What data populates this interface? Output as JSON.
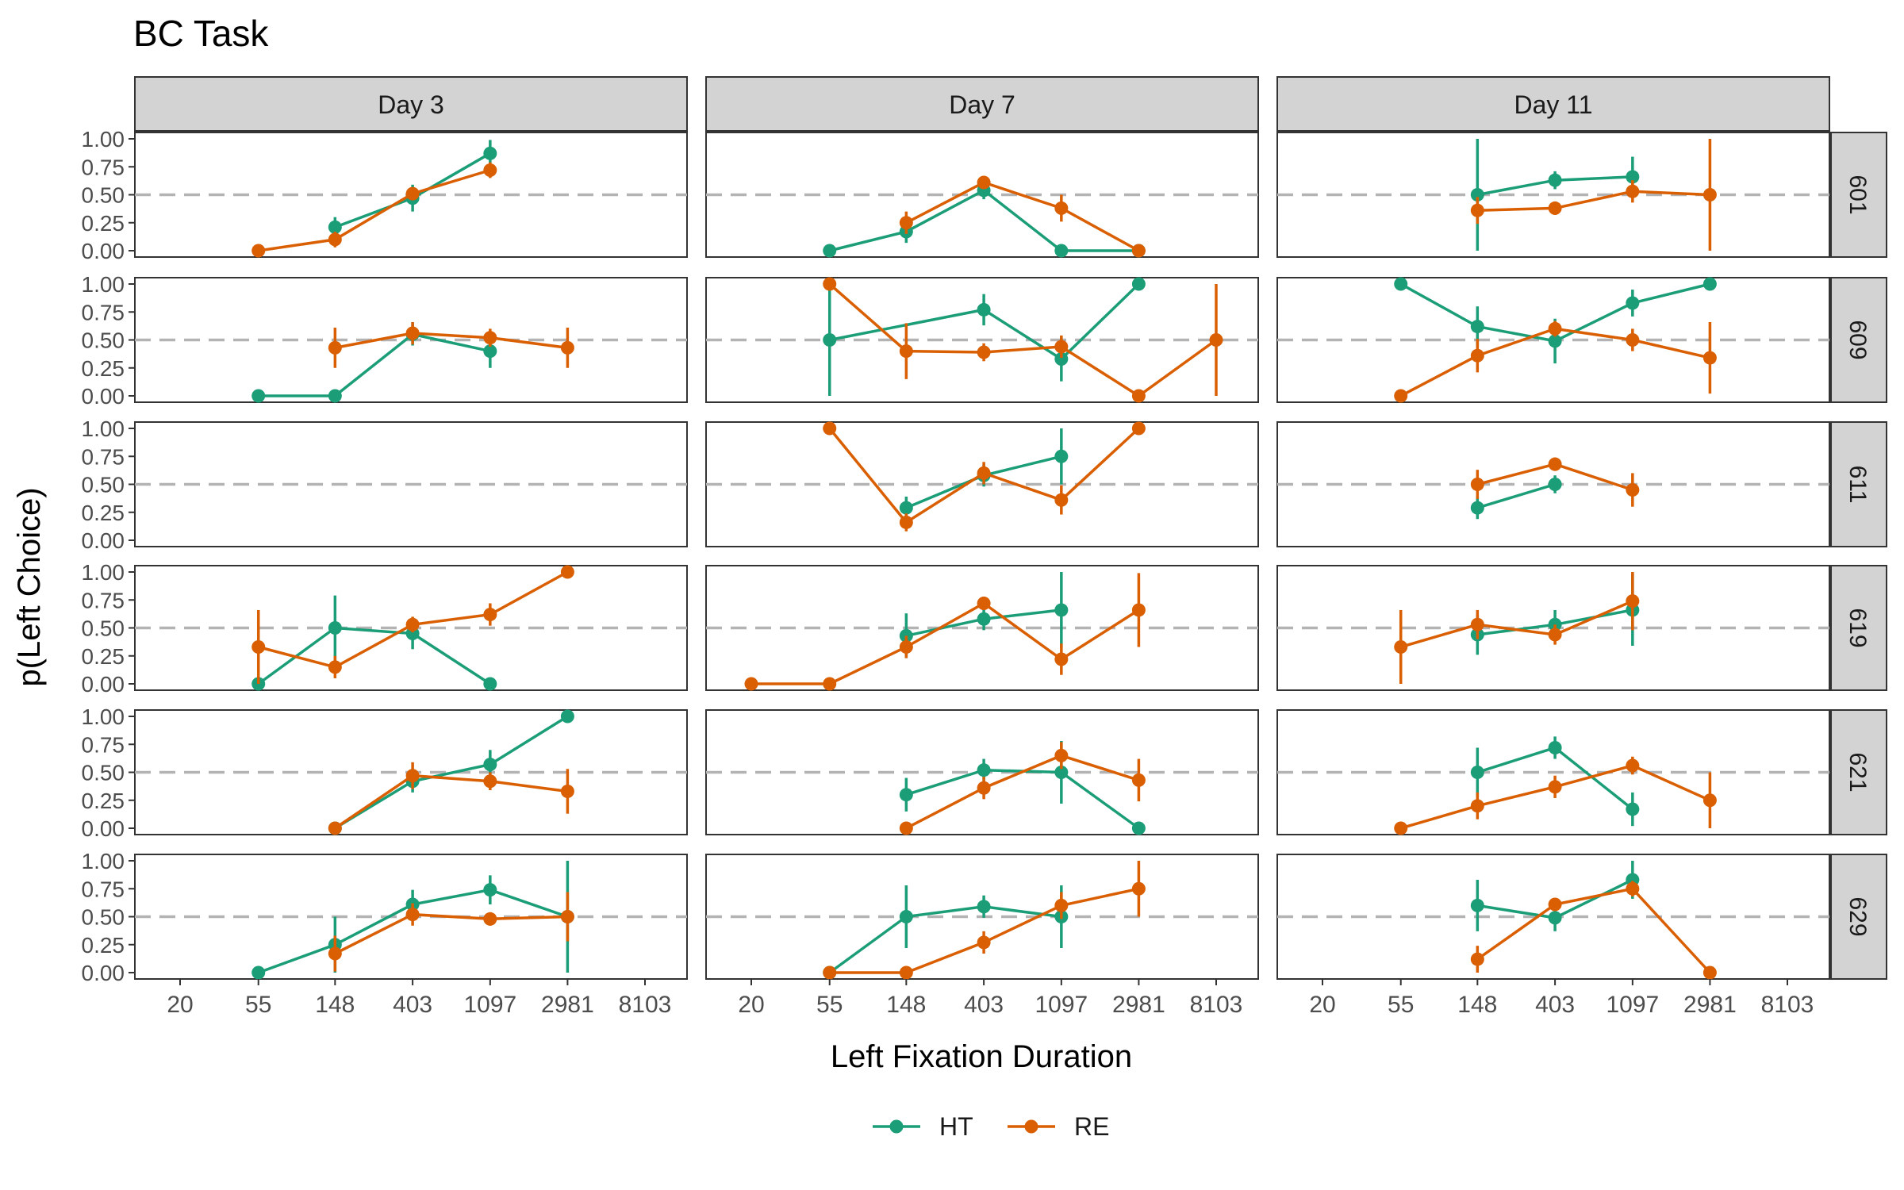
{
  "chart_data": {
    "type": "line",
    "title": "BC Task",
    "xlabel": "Left Fixation Duration",
    "ylabel": "p(Left Choice)",
    "x_ticks": [
      20,
      55,
      148,
      403,
      1097,
      2981,
      8103
    ],
    "x_scale": "log",
    "y_ticks": [
      "0.00",
      "0.25",
      "0.50",
      "0.75",
      "1.00"
    ],
    "ylim": [
      0,
      1
    ],
    "reference_line": 0.5,
    "legend_position": "bottom",
    "col_facets": [
      "Day 3",
      "Day 7",
      "Day 11"
    ],
    "row_facets": [
      "601",
      "609",
      "611",
      "619",
      "621",
      "629"
    ],
    "series": [
      {
        "name": "HT",
        "color": "#1b9e77"
      },
      {
        "name": "RE",
        "color": "#d95f02"
      }
    ],
    "panels": [
      {
        "day": "Day 3",
        "subject": "601",
        "HT": [
          [
            148,
            0.21,
            0.09
          ],
          [
            403,
            0.47,
            0.12
          ],
          [
            1097,
            0.87,
            0.12
          ]
        ],
        "RE": [
          [
            55,
            0.0,
            0
          ],
          [
            148,
            0.1,
            0.07
          ],
          [
            403,
            0.51,
            0.05
          ],
          [
            1097,
            0.72,
            0.07
          ]
        ]
      },
      {
        "day": "Day 7",
        "subject": "601",
        "HT": [
          [
            55,
            0.0,
            0
          ],
          [
            148,
            0.17,
            0.1
          ],
          [
            403,
            0.54,
            0.08
          ],
          [
            1097,
            0.0,
            0
          ],
          [
            2981,
            0.0,
            0
          ]
        ],
        "RE": [
          [
            148,
            0.25,
            0.1
          ],
          [
            403,
            0.61,
            0.05
          ],
          [
            1097,
            0.38,
            0.12
          ],
          [
            2981,
            0.0,
            0
          ]
        ]
      },
      {
        "day": "Day 11",
        "subject": "601",
        "HT": [
          [
            148,
            0.5,
            0.5
          ],
          [
            403,
            0.63,
            0.08
          ],
          [
            1097,
            0.66,
            0.18
          ]
        ],
        "RE": [
          [
            148,
            0.36,
            0.12
          ],
          [
            403,
            0.38,
            0.06
          ],
          [
            1097,
            0.53,
            0.1
          ],
          [
            2981,
            0.5,
            0.5
          ]
        ]
      },
      {
        "day": "Day 3",
        "subject": "609",
        "HT": [
          [
            55,
            0.0,
            0
          ],
          [
            148,
            0.0,
            0
          ],
          [
            403,
            0.55,
            0.1
          ],
          [
            1097,
            0.4,
            0.15
          ]
        ],
        "RE": [
          [
            148,
            0.43,
            0.18
          ],
          [
            403,
            0.56,
            0.1
          ],
          [
            1097,
            0.52,
            0.08
          ],
          [
            2981,
            0.43,
            0.18
          ]
        ]
      },
      {
        "day": "Day 7",
        "subject": "609",
        "HT": [
          [
            55,
            0.5,
            0.5
          ],
          [
            403,
            0.77,
            0.14
          ],
          [
            1097,
            0.33,
            0.2
          ],
          [
            2981,
            1.0,
            0
          ]
        ],
        "RE": [
          [
            55,
            1.0,
            0
          ],
          [
            148,
            0.4,
            0.25
          ],
          [
            403,
            0.39,
            0.08
          ],
          [
            1097,
            0.44,
            0.1
          ],
          [
            2981,
            0.0,
            0
          ],
          [
            8103,
            0.5,
            0.5
          ]
        ]
      },
      {
        "day": "Day 11",
        "subject": "609",
        "HT": [
          [
            55,
            1.0,
            0
          ],
          [
            148,
            0.62,
            0.18
          ],
          [
            403,
            0.49,
            0.2
          ],
          [
            1097,
            0.83,
            0.12
          ],
          [
            2981,
            1.0,
            0
          ]
        ],
        "RE": [
          [
            55,
            0.0,
            0
          ],
          [
            148,
            0.36,
            0.15
          ],
          [
            403,
            0.6,
            0.07
          ],
          [
            1097,
            0.5,
            0.1
          ],
          [
            2981,
            0.34,
            0.32
          ]
        ]
      },
      {
        "day": "Day 7",
        "subject": "611",
        "HT": [
          [
            148,
            0.29,
            0.1
          ],
          [
            403,
            0.58,
            0.1
          ],
          [
            1097,
            0.75,
            0.25
          ]
        ],
        "RE": [
          [
            55,
            1.0,
            0
          ],
          [
            148,
            0.16,
            0.08
          ],
          [
            403,
            0.6,
            0.1
          ],
          [
            1097,
            0.36,
            0.13
          ],
          [
            2981,
            1.0,
            0
          ]
        ]
      },
      {
        "day": "Day 11",
        "subject": "611",
        "HT": [
          [
            148,
            0.29,
            0.1
          ],
          [
            403,
            0.5,
            0.08
          ]
        ],
        "RE": [
          [
            148,
            0.5,
            0.13
          ],
          [
            403,
            0.68,
            0.06
          ],
          [
            1097,
            0.45,
            0.15
          ]
        ]
      },
      {
        "day": "Day 3",
        "subject": "619",
        "HT": [
          [
            55,
            0.0,
            0
          ],
          [
            148,
            0.5,
            0.29
          ],
          [
            403,
            0.45,
            0.14
          ],
          [
            1097,
            0.0,
            0
          ]
        ],
        "RE": [
          [
            55,
            0.33,
            0.33
          ],
          [
            148,
            0.15,
            0.1
          ],
          [
            403,
            0.53,
            0.07
          ],
          [
            1097,
            0.62,
            0.1
          ],
          [
            2981,
            1.0,
            0
          ]
        ]
      },
      {
        "day": "Day 7",
        "subject": "619",
        "HT": [
          [
            148,
            0.43,
            0.2
          ],
          [
            403,
            0.58,
            0.1
          ],
          [
            1097,
            0.66,
            0.34
          ]
        ],
        "RE": [
          [
            20,
            0.0,
            0
          ],
          [
            55,
            0.0,
            0
          ],
          [
            148,
            0.33,
            0.1
          ],
          [
            403,
            0.72,
            0.06
          ],
          [
            1097,
            0.22,
            0.14
          ],
          [
            2981,
            0.66,
            0.33
          ]
        ]
      },
      {
        "day": "Day 11",
        "subject": "619",
        "HT": [
          [
            148,
            0.44,
            0.18
          ],
          [
            403,
            0.53,
            0.13
          ],
          [
            1097,
            0.66,
            0.32
          ]
        ],
        "RE": [
          [
            55,
            0.33,
            0.33
          ],
          [
            148,
            0.53,
            0.13
          ],
          [
            403,
            0.44,
            0.09
          ],
          [
            1097,
            0.74,
            0.26
          ]
        ]
      },
      {
        "day": "Day 3",
        "subject": "621",
        "HT": [
          [
            148,
            0.0,
            0
          ],
          [
            403,
            0.42,
            0.1
          ],
          [
            1097,
            0.57,
            0.13
          ],
          [
            2981,
            1.0,
            0
          ]
        ],
        "RE": [
          [
            148,
            0.0,
            0
          ],
          [
            403,
            0.47,
            0.12
          ],
          [
            1097,
            0.42,
            0.08
          ],
          [
            2981,
            0.33,
            0.2
          ]
        ]
      },
      {
        "day": "Day 7",
        "subject": "621",
        "HT": [
          [
            148,
            0.3,
            0.15
          ],
          [
            403,
            0.52,
            0.1
          ],
          [
            1097,
            0.5,
            0.28
          ],
          [
            2981,
            0.0,
            0
          ]
        ],
        "RE": [
          [
            148,
            0.0,
            0
          ],
          [
            403,
            0.36,
            0.1
          ],
          [
            1097,
            0.65,
            0.12
          ],
          [
            2981,
            0.43,
            0.19
          ]
        ]
      },
      {
        "day": "Day 11",
        "subject": "621",
        "HT": [
          [
            148,
            0.5,
            0.22
          ],
          [
            403,
            0.72,
            0.1
          ],
          [
            1097,
            0.17,
            0.15
          ]
        ],
        "RE": [
          [
            55,
            0.0,
            0
          ],
          [
            148,
            0.2,
            0.12
          ],
          [
            403,
            0.37,
            0.1
          ],
          [
            1097,
            0.56,
            0.08
          ],
          [
            2981,
            0.25,
            0.25
          ]
        ]
      },
      {
        "day": "Day 3",
        "subject": "629",
        "HT": [
          [
            55,
            0.0,
            0
          ],
          [
            148,
            0.25,
            0.25
          ],
          [
            403,
            0.61,
            0.13
          ],
          [
            1097,
            0.74,
            0.13
          ],
          [
            2981,
            0.5,
            0.5
          ]
        ],
        "RE": [
          [
            148,
            0.17,
            0.16
          ],
          [
            403,
            0.52,
            0.1
          ],
          [
            1097,
            0.48,
            0.06
          ],
          [
            2981,
            0.5,
            0.22
          ]
        ]
      },
      {
        "day": "Day 7",
        "subject": "629",
        "HT": [
          [
            55,
            0.0,
            0
          ],
          [
            148,
            0.5,
            0.28
          ],
          [
            403,
            0.59,
            0.1
          ],
          [
            1097,
            0.5,
            0.28
          ]
        ],
        "RE": [
          [
            55,
            0.0,
            0
          ],
          [
            148,
            0.0,
            0
          ],
          [
            403,
            0.27,
            0.1
          ],
          [
            1097,
            0.6,
            0.12
          ],
          [
            2981,
            0.75,
            0.25
          ]
        ]
      },
      {
        "day": "Day 11",
        "subject": "629",
        "HT": [
          [
            148,
            0.6,
            0.23
          ],
          [
            403,
            0.49,
            0.12
          ],
          [
            1097,
            0.83,
            0.17
          ]
        ],
        "RE": [
          [
            148,
            0.12,
            0.12
          ],
          [
            403,
            0.61,
            0.05
          ],
          [
            1097,
            0.75,
            0.07
          ],
          [
            2981,
            0.0,
            0
          ]
        ]
      }
    ]
  }
}
